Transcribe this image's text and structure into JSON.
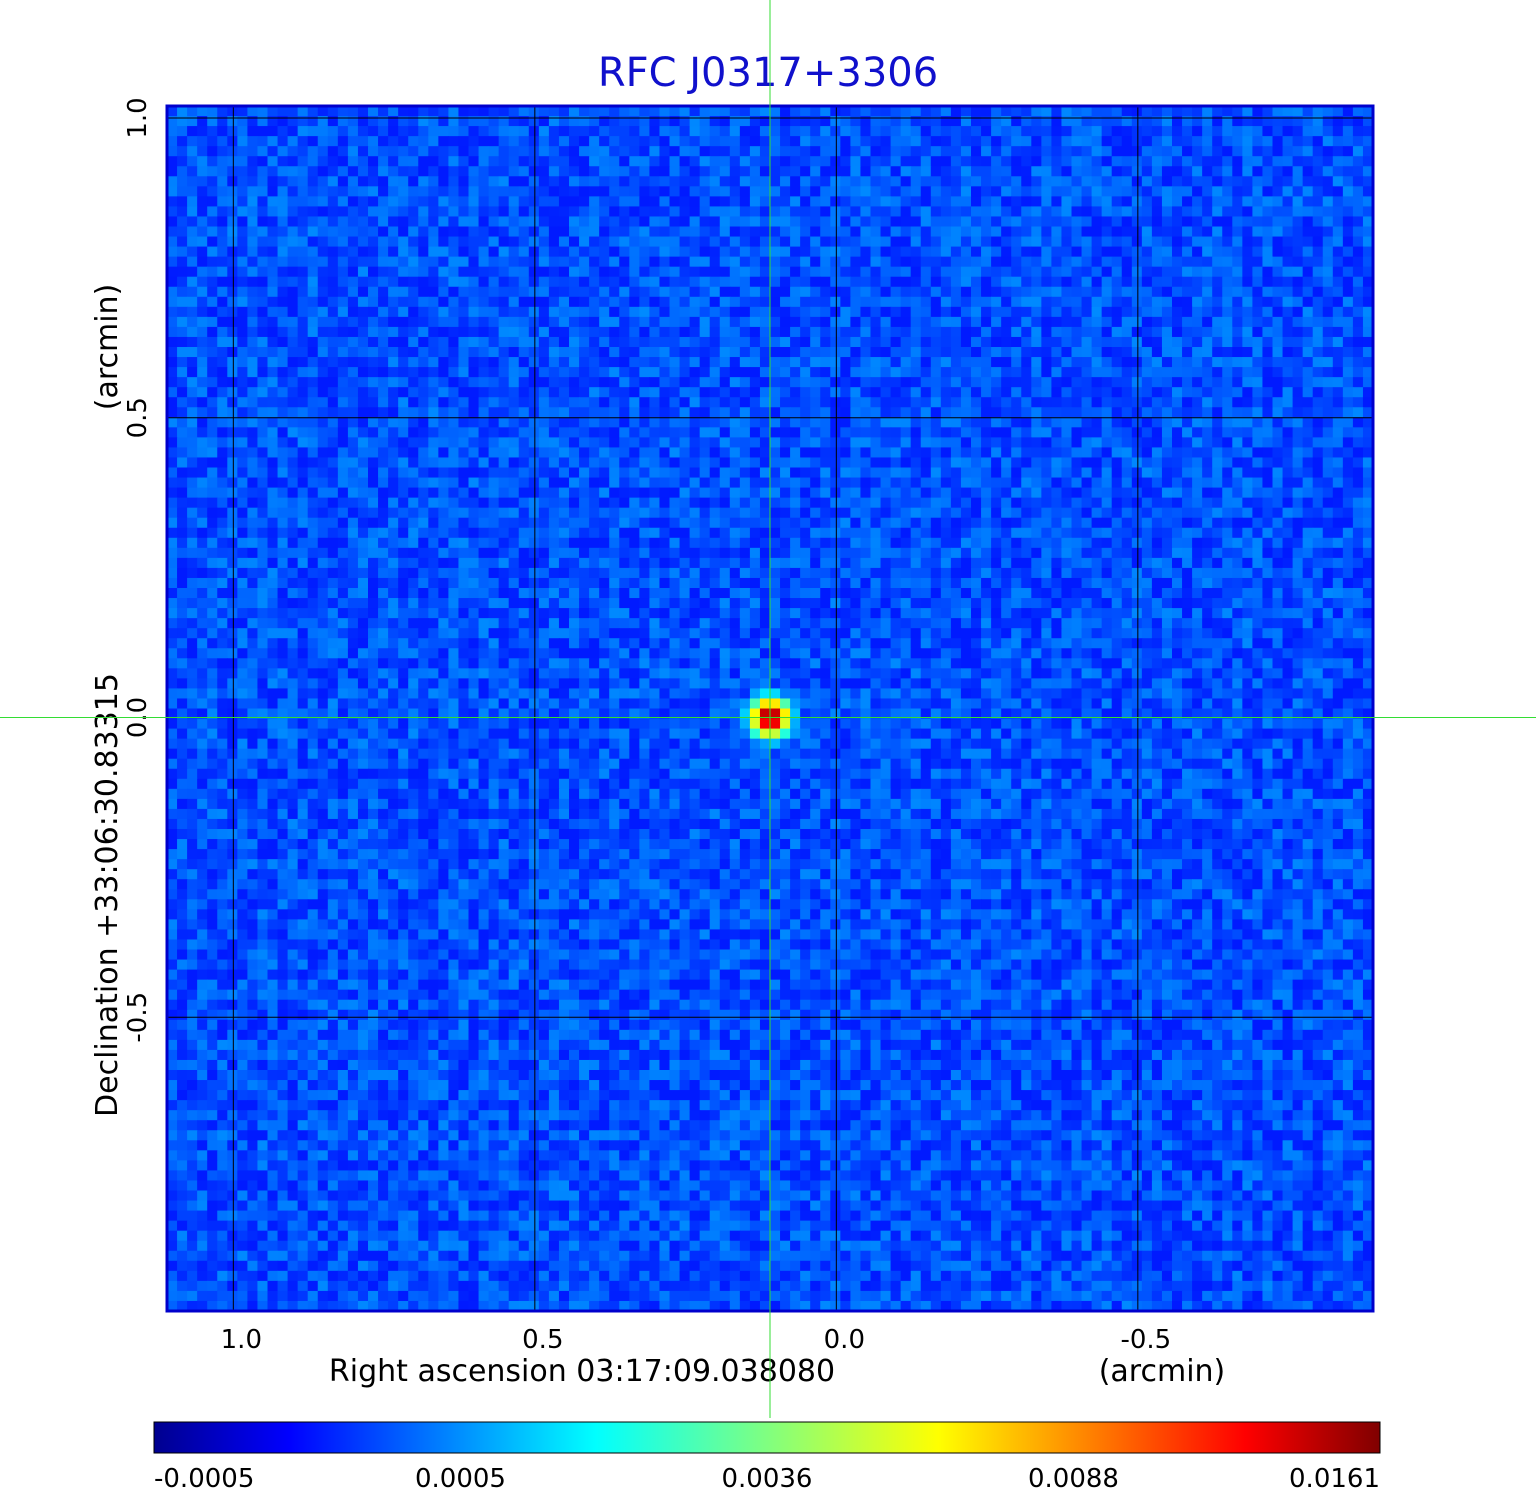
{
  "chart_data": {
    "type": "heatmap",
    "title": "RFC J0317+3306",
    "x_axis": {
      "label": "Right ascension  03:17:09.038080",
      "unit_label": "(arcmin)",
      "ticks": [
        1.0,
        0.5,
        0.0,
        -0.5
      ],
      "tick_labels": [
        "1.0",
        "0.5",
        "0.0",
        "-0.5"
      ],
      "range": [
        1.11,
        -0.89
      ],
      "reversed": true
    },
    "y_axis": {
      "label": "Declination  +33:06:30.83315",
      "unit_label": "(arcmin)",
      "ticks": [
        1.0,
        0.5,
        0.0,
        -0.5
      ],
      "tick_labels": [
        "1.0",
        "0.5",
        "0.0",
        "-0.5"
      ],
      "range": [
        -0.99,
        1.02
      ]
    },
    "grid": true,
    "colorbar": {
      "colormap": "jet",
      "placement": "bottom",
      "tick_labels": [
        "-0.0005",
        "0.0005",
        "0.0036",
        "0.0088",
        "0.0161"
      ],
      "min": -0.0005,
      "max": 0.0161
    },
    "source": {
      "x": 0.11,
      "y": 0.0,
      "peak": 0.0161
    },
    "crosshair": {
      "x": 0.11,
      "y": 0.0,
      "color": "#33dd33"
    },
    "background_level": 0.0002,
    "frame_color": "#0000cc"
  }
}
